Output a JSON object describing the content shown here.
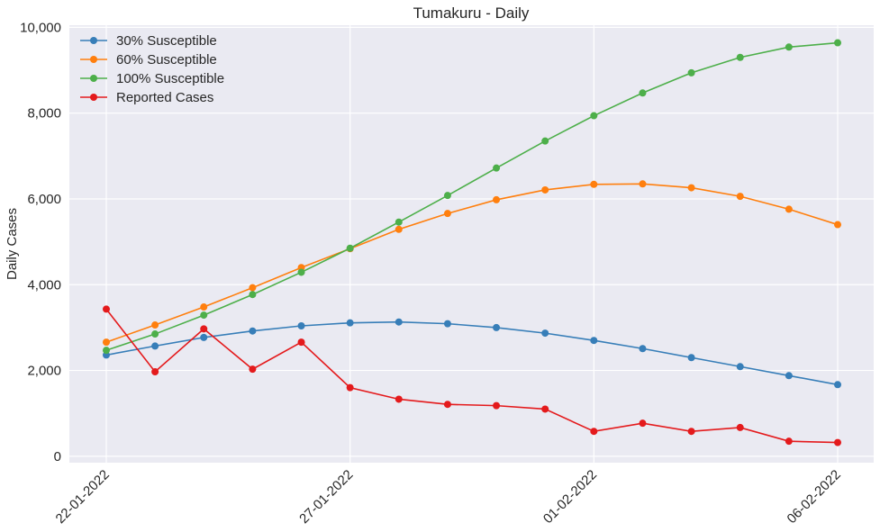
{
  "chart_data": {
    "type": "line",
    "title": "Tumakuru - Daily",
    "xlabel": "",
    "ylabel": "Daily Cases",
    "x": [
      "22-01-2022",
      "23-01-2022",
      "24-01-2022",
      "25-01-2022",
      "26-01-2022",
      "27-01-2022",
      "28-01-2022",
      "29-01-2022",
      "30-01-2022",
      "31-01-2022",
      "01-02-2022",
      "02-02-2022",
      "03-02-2022",
      "04-02-2022",
      "05-02-2022",
      "06-02-2022"
    ],
    "xticks": [
      "22-01-2022",
      "27-01-2022",
      "01-02-2022",
      "06-02-2022"
    ],
    "yticks": [
      "0",
      "2,000",
      "4,000",
      "6,000",
      "8,000",
      "10,000"
    ],
    "ytick_values": [
      0,
      2000,
      4000,
      6000,
      8000,
      10000
    ],
    "ylim": [
      -150,
      10050
    ],
    "grid": true,
    "legend_position": "top-left",
    "series": [
      {
        "name": "30% Susceptible",
        "color": "#377eb8",
        "values": [
          2360,
          2570,
          2770,
          2920,
          3040,
          3110,
          3130,
          3090,
          3000,
          2870,
          2700,
          2510,
          2300,
          2090,
          1880,
          1670
        ]
      },
      {
        "name": "60% Susceptible",
        "color": "#ff7f0e",
        "values": [
          2660,
          3060,
          3480,
          3930,
          4400,
          4840,
          5290,
          5660,
          5980,
          6210,
          6340,
          6350,
          6260,
          6060,
          5760,
          5400
        ]
      },
      {
        "name": "100% Susceptible",
        "color": "#4daf4a",
        "values": [
          2470,
          2850,
          3290,
          3770,
          4290,
          4850,
          5460,
          6080,
          6720,
          7350,
          7940,
          8470,
          8940,
          9300,
          9540,
          9640
        ]
      },
      {
        "name": "Reported Cases",
        "color": "#e41a1c",
        "values": [
          3430,
          1970,
          2970,
          2030,
          2660,
          1600,
          1330,
          1210,
          1180,
          1100,
          580,
          770,
          580,
          670,
          350,
          320
        ]
      }
    ]
  }
}
